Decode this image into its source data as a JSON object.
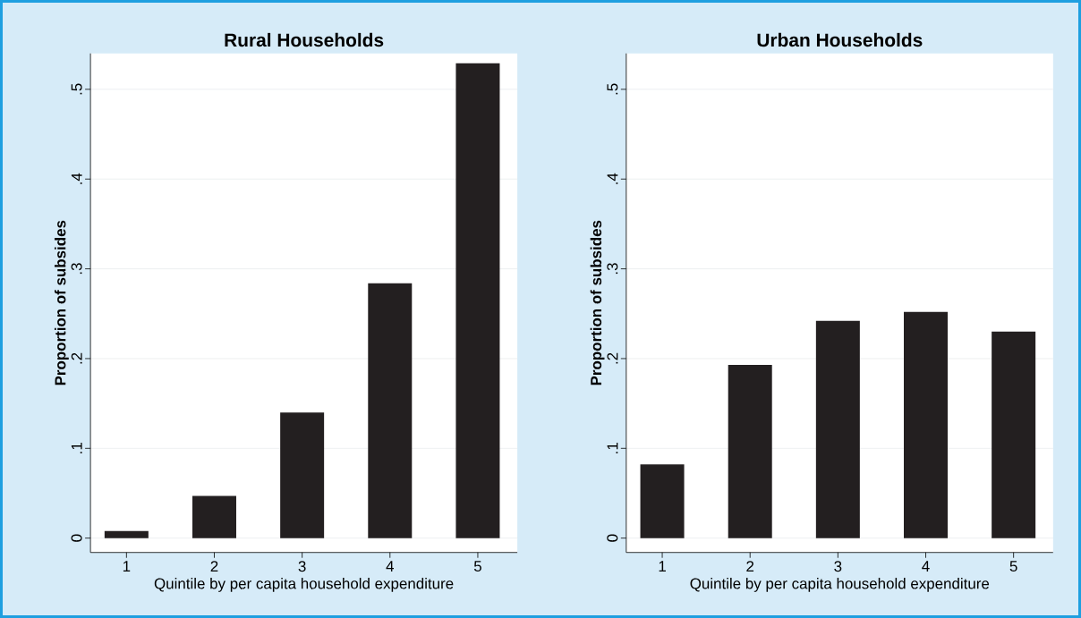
{
  "chart_data": [
    {
      "type": "bar",
      "title": "Rural Households",
      "xlabel": "Quintile by per capita household expenditure",
      "ylabel": "Proportion of subsides",
      "categories": [
        "1",
        "2",
        "3",
        "4",
        "5"
      ],
      "values": [
        0.008,
        0.047,
        0.14,
        0.284,
        0.529
      ],
      "color": "#231f20",
      "ylim": [
        -0.016,
        0.54
      ],
      "yticks": [
        0,
        {
          "value": 0.1,
          "label": ".1"
        },
        {
          "value": 0.2,
          "label": ".2"
        },
        {
          "value": 0.3,
          "label": ".3"
        },
        {
          "value": 0.4,
          "label": ".4"
        },
        {
          "value": 0.5,
          "label": ".5"
        }
      ],
      "grid": "y"
    },
    {
      "type": "bar",
      "title": "Urban Households",
      "xlabel": "Quintile by per capita household expenditure",
      "ylabel": "Proportion of subsides",
      "categories": [
        "1",
        "2",
        "3",
        "4",
        "5"
      ],
      "values": [
        0.082,
        0.193,
        0.242,
        0.252,
        0.23
      ],
      "color": "#231f20",
      "ylim": [
        -0.016,
        0.54
      ],
      "yticks": [
        0,
        {
          "value": 0.1,
          "label": ".1"
        },
        {
          "value": 0.2,
          "label": ".2"
        },
        {
          "value": 0.3,
          "label": ".3"
        },
        {
          "value": 0.4,
          "label": ".4"
        },
        {
          "value": 0.5,
          "label": ".5"
        }
      ],
      "grid": "y"
    }
  ]
}
